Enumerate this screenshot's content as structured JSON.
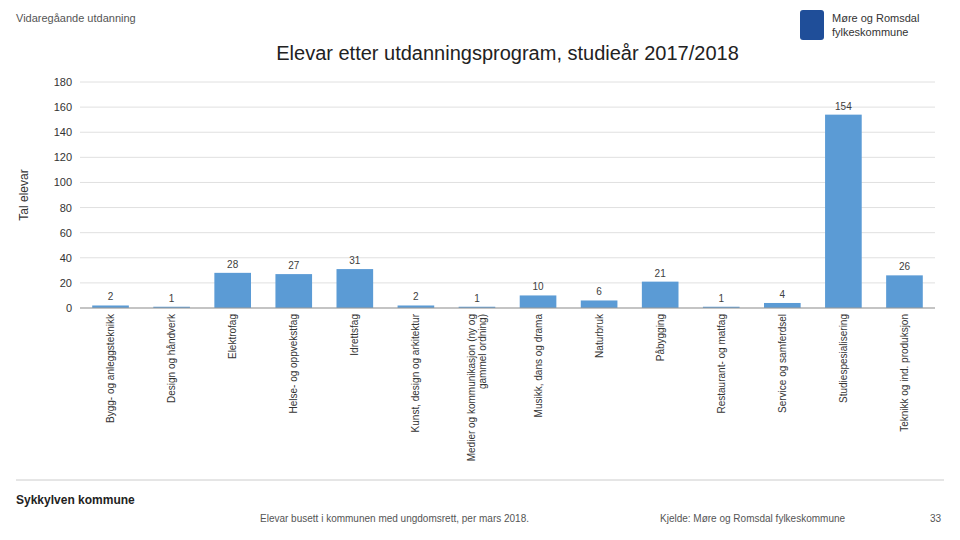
{
  "chart_data": {
    "type": "bar",
    "title": "Elevar etter utdanningsprogram, studieår 2017/2018",
    "ylabel": "Tal elevar",
    "categories": [
      "Bygg- og anleggsteknikk",
      "Design og håndverk",
      "Elektrofag",
      "Helse- og oppvekstfag",
      "Idrettsfag",
      "Kunst, design og arkitektur",
      "Medier og kommunikasjon (ny og\ngammel ordning)",
      "Musikk, dans og drama",
      "Naturbruk",
      "Påbygging",
      "Restaurant- og matfag",
      "Service og samferdsel",
      "Studiespesialisering",
      "Teknikk og ind. produksjon"
    ],
    "values": [
      2,
      1,
      28,
      27,
      31,
      2,
      1,
      10,
      6,
      21,
      1,
      4,
      154,
      26
    ],
    "color": "#5B9BD5",
    "ylim": [
      0,
      180
    ],
    "yticks": [
      0,
      20,
      40,
      60,
      80,
      100,
      120,
      140,
      160,
      180
    ],
    "grid": true,
    "data_labels": true,
    "annotations": [
      "Vidaregåande utdanning",
      "Møre og Romsdal\nfylkeskommune",
      "Sykkylven kommune",
      "Elevar busett i kommunen med ungdomsrett, per mars 2018.",
      "Kjelde: Møre og Romsdal fylkeskommune",
      "33"
    ]
  }
}
